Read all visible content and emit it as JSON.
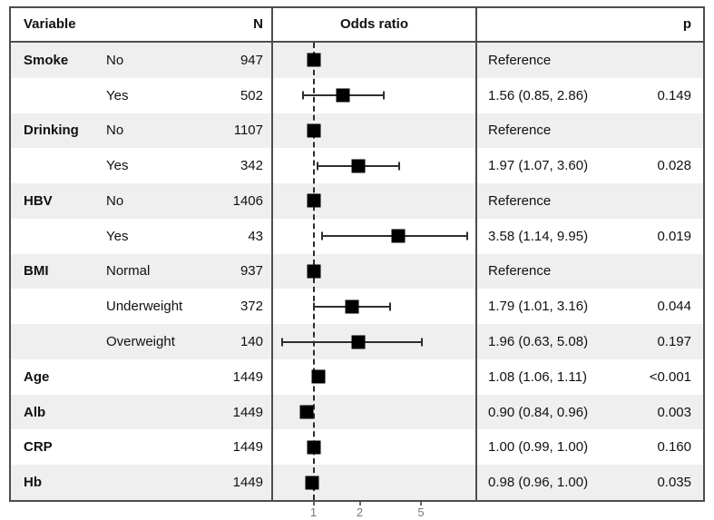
{
  "header": {
    "variable": "Variable",
    "n": "N",
    "odds_ratio": "Odds ratio",
    "p": "p"
  },
  "colors": {
    "row_shade": "#efefef",
    "border": "#4d4d4d",
    "marker": "#000000",
    "ci_line": "#2e2e2e",
    "reference_line": "#2b2b2b",
    "tick_label": "#7a7a7a"
  },
  "axis": {
    "scale": "log",
    "ticks": [
      {
        "label": "1",
        "value": 1
      },
      {
        "label": "2",
        "value": 2
      },
      {
        "label": "5",
        "value": 5
      }
    ]
  },
  "rows": [
    {
      "variable": "Smoke",
      "level": "No",
      "n": "947",
      "or_text": "Reference",
      "p": "",
      "est": 1.0,
      "lo": null,
      "hi": null
    },
    {
      "variable": "",
      "level": "Yes",
      "n": "502",
      "or_text": "1.56 (0.85, 2.86)",
      "p": "0.149",
      "est": 1.56,
      "lo": 0.85,
      "hi": 2.86
    },
    {
      "variable": "Drinking",
      "level": "No",
      "n": "1107",
      "or_text": "Reference",
      "p": "",
      "est": 1.0,
      "lo": null,
      "hi": null
    },
    {
      "variable": "",
      "level": "Yes",
      "n": "342",
      "or_text": "1.97 (1.07, 3.60)",
      "p": "0.028",
      "est": 1.97,
      "lo": 1.07,
      "hi": 3.6
    },
    {
      "variable": "HBV",
      "level": "No",
      "n": "1406",
      "or_text": "Reference",
      "p": "",
      "est": 1.0,
      "lo": null,
      "hi": null
    },
    {
      "variable": "",
      "level": "Yes",
      "n": "43",
      "or_text": "3.58 (1.14, 9.95)",
      "p": "0.019",
      "est": 3.58,
      "lo": 1.14,
      "hi": 9.95
    },
    {
      "variable": "BMI",
      "level": "Normal",
      "n": "937",
      "or_text": "Reference",
      "p": "",
      "est": 1.0,
      "lo": null,
      "hi": null
    },
    {
      "variable": "",
      "level": "Underweight",
      "n": "372",
      "or_text": "1.79 (1.01, 3.16)",
      "p": "0.044",
      "est": 1.79,
      "lo": 1.01,
      "hi": 3.16
    },
    {
      "variable": "",
      "level": "Overweight",
      "n": "140",
      "or_text": "1.96 (0.63, 5.08)",
      "p": "0.197",
      "est": 1.96,
      "lo": 0.63,
      "hi": 5.08
    },
    {
      "variable": "Age",
      "level": "",
      "n": "1449",
      "or_text": "1.08 (1.06, 1.11)",
      "p": "<0.001",
      "est": 1.08,
      "lo": 1.06,
      "hi": 1.11
    },
    {
      "variable": "Alb",
      "level": "",
      "n": "1449",
      "or_text": "0.90 (0.84, 0.96)",
      "p": "0.003",
      "est": 0.9,
      "lo": 0.84,
      "hi": 0.96
    },
    {
      "variable": "CRP",
      "level": "",
      "n": "1449",
      "or_text": "1.00 (0.99, 1.00)",
      "p": "0.160",
      "est": 1.0,
      "lo": 0.99,
      "hi": 1.0
    },
    {
      "variable": "Hb",
      "level": "",
      "n": "1449",
      "or_text": "0.98 (0.96, 1.00)",
      "p": "0.035",
      "est": 0.98,
      "lo": 0.96,
      "hi": 1.0
    }
  ],
  "chart_data": {
    "type": "scatter",
    "variant": "forest-plot",
    "title": "Odds ratio",
    "x_scale": "log",
    "x_ticks": [
      1,
      2,
      5
    ],
    "xlim": [
      0.54,
      11.5
    ],
    "reference_line": 1,
    "points": [
      {
        "label": "Smoke No",
        "n": 947,
        "or": 1.0,
        "ci_low": null,
        "ci_high": null,
        "text": "Reference",
        "p": null
      },
      {
        "label": "Smoke Yes",
        "n": 502,
        "or": 1.56,
        "ci_low": 0.85,
        "ci_high": 2.86,
        "text": "1.56 (0.85, 2.86)",
        "p": "0.149"
      },
      {
        "label": "Drinking No",
        "n": 1107,
        "or": 1.0,
        "ci_low": null,
        "ci_high": null,
        "text": "Reference",
        "p": null
      },
      {
        "label": "Drinking Yes",
        "n": 342,
        "or": 1.97,
        "ci_low": 1.07,
        "ci_high": 3.6,
        "text": "1.97 (1.07, 3.60)",
        "p": "0.028"
      },
      {
        "label": "HBV No",
        "n": 1406,
        "or": 1.0,
        "ci_low": null,
        "ci_high": null,
        "text": "Reference",
        "p": null
      },
      {
        "label": "HBV Yes",
        "n": 43,
        "or": 3.58,
        "ci_low": 1.14,
        "ci_high": 9.95,
        "text": "3.58 (1.14, 9.95)",
        "p": "0.019"
      },
      {
        "label": "BMI Normal",
        "n": 937,
        "or": 1.0,
        "ci_low": null,
        "ci_high": null,
        "text": "Reference",
        "p": null
      },
      {
        "label": "BMI Underweight",
        "n": 372,
        "or": 1.79,
        "ci_low": 1.01,
        "ci_high": 3.16,
        "text": "1.79 (1.01, 3.16)",
        "p": "0.044"
      },
      {
        "label": "BMI Overweight",
        "n": 140,
        "or": 1.96,
        "ci_low": 0.63,
        "ci_high": 5.08,
        "text": "1.96 (0.63, 5.08)",
        "p": "0.197"
      },
      {
        "label": "Age",
        "n": 1449,
        "or": 1.08,
        "ci_low": 1.06,
        "ci_high": 1.11,
        "text": "1.08 (1.06, 1.11)",
        "p": "<0.001"
      },
      {
        "label": "Alb",
        "n": 1449,
        "or": 0.9,
        "ci_low": 0.84,
        "ci_high": 0.96,
        "text": "0.90 (0.84, 0.96)",
        "p": "0.003"
      },
      {
        "label": "CRP",
        "n": 1449,
        "or": 1.0,
        "ci_low": 0.99,
        "ci_high": 1.0,
        "text": "1.00 (0.99, 1.00)",
        "p": "0.160"
      },
      {
        "label": "Hb",
        "n": 1449,
        "or": 0.98,
        "ci_low": 0.96,
        "ci_high": 1.0,
        "text": "0.98 (0.96, 1.00)",
        "p": "0.035"
      }
    ]
  }
}
